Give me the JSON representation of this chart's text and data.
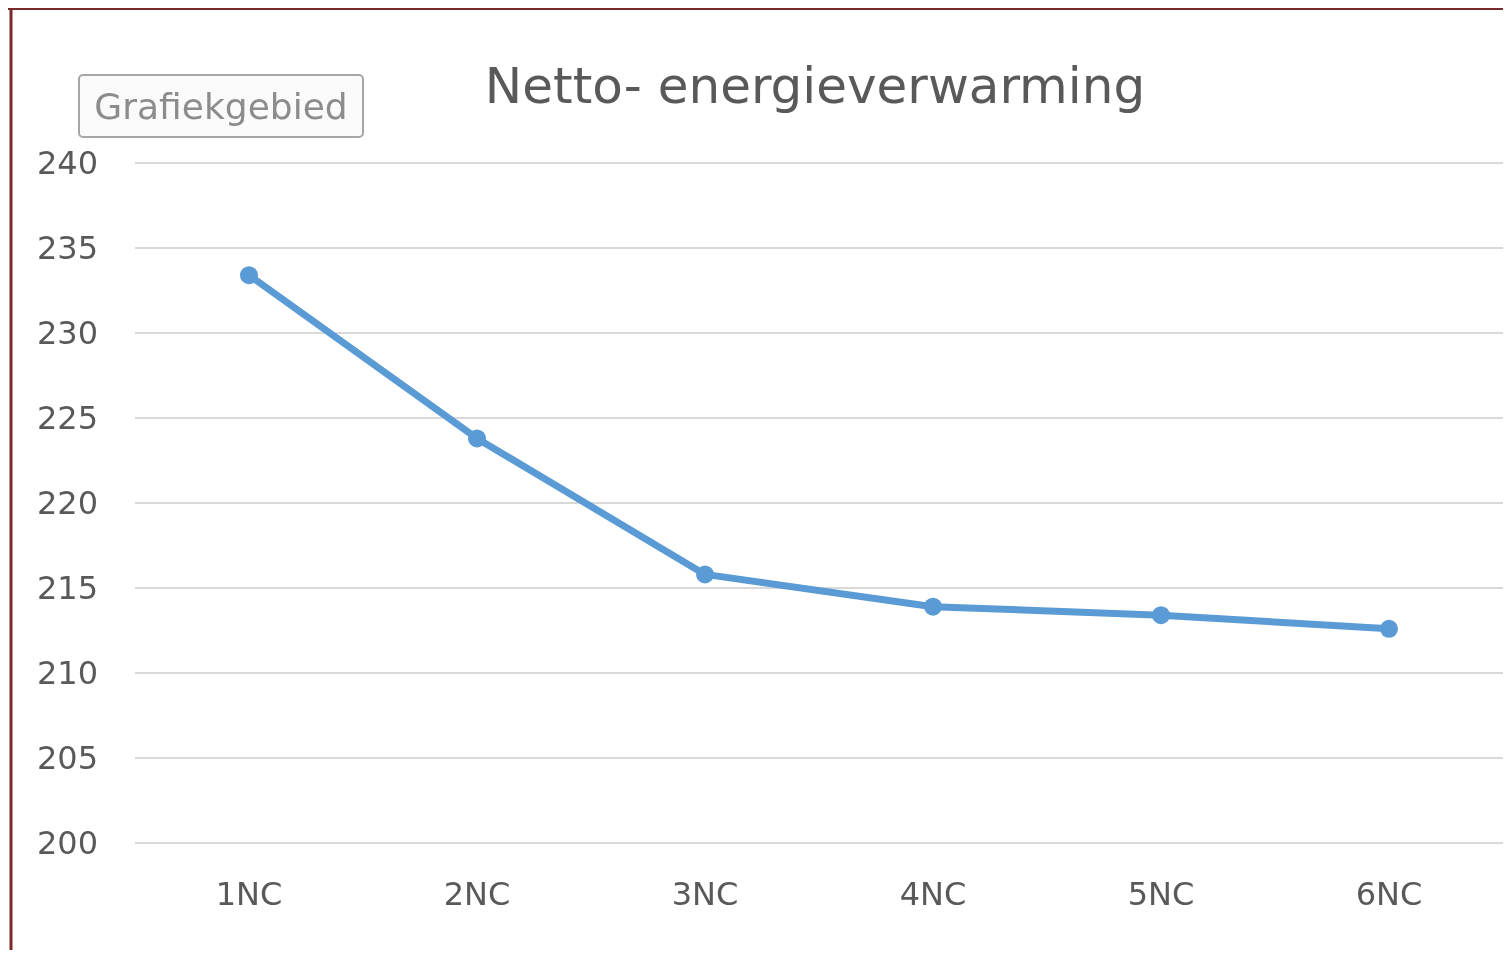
{
  "chart_data": {
    "type": "line",
    "title": "Netto- energieverwarming",
    "annotations": [
      "Grafiekgebied"
    ],
    "categories": [
      "1NC",
      "2NC",
      "3NC",
      "4NC",
      "5NC",
      "6NC"
    ],
    "series": [
      {
        "color": "#5b9bd5",
        "values": [
          233.4,
          223.8,
          215.8,
          213.9,
          213.4,
          212.6
        ]
      }
    ],
    "ylim": [
      200,
      240
    ],
    "yticks": [
      200,
      205,
      210,
      215,
      220,
      225,
      230,
      235,
      240
    ],
    "grid": "y",
    "marker": "circle",
    "line_style": "solid"
  }
}
